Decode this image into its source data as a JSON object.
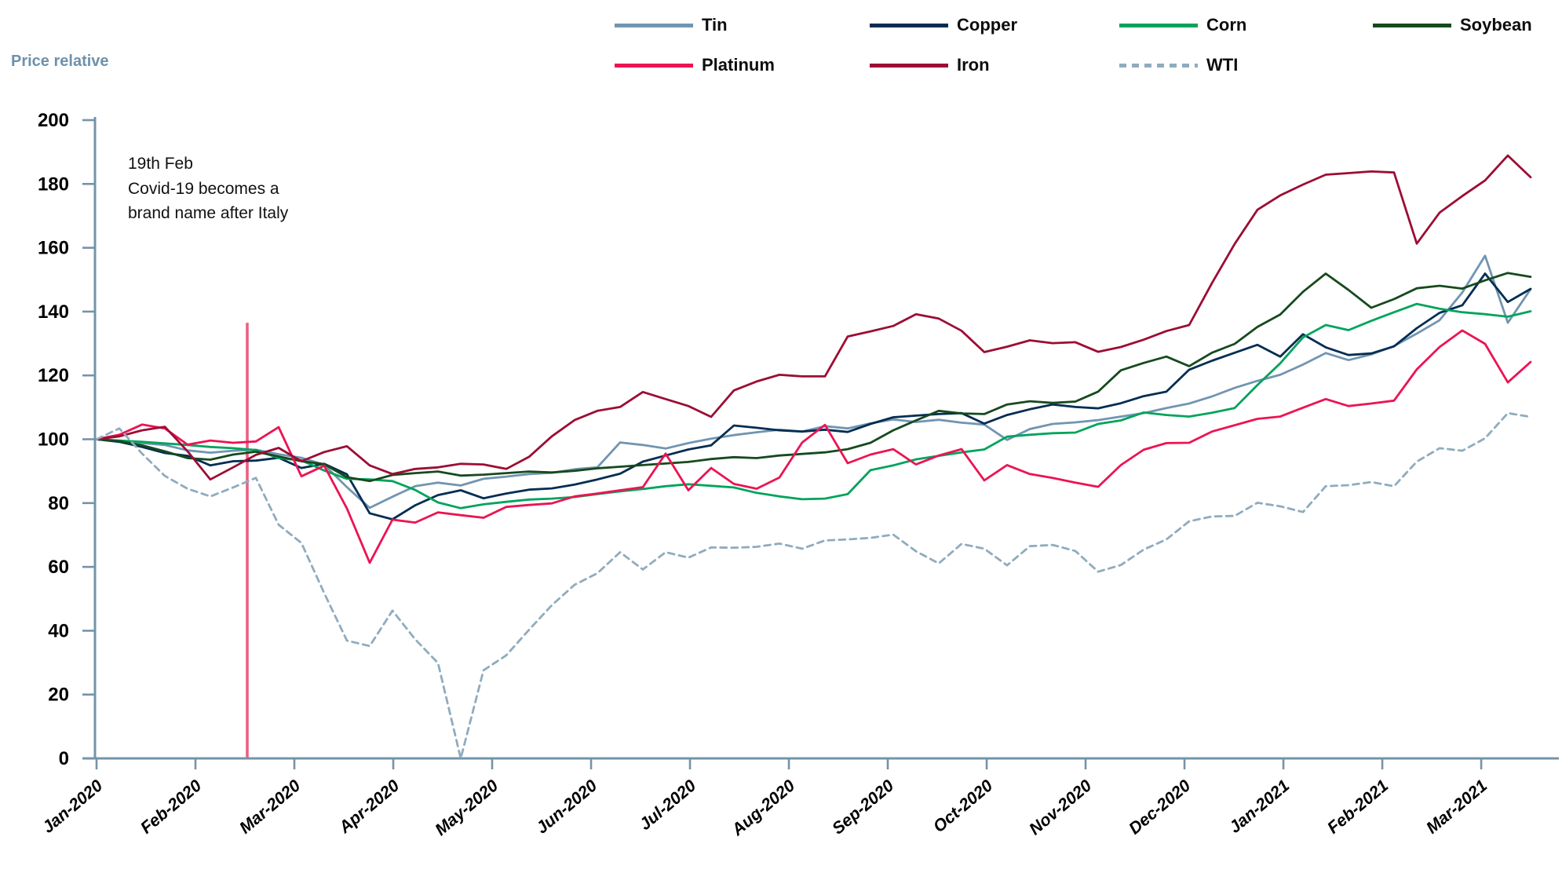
{
  "y_axis_title": "Price relative",
  "annotation": {
    "line1": "19th Feb",
    "line2": "Covid-19 becomes a",
    "line3": "brand name after Italy"
  },
  "colors": {
    "axis": "#7394A9",
    "axis_title": "#6E91AA",
    "tick_text": "#000000",
    "event_line": "#EC5F82",
    "background": "#FFFFFF"
  },
  "chart_data": {
    "type": "line",
    "title": "",
    "ylabel": "Price relative",
    "xlabel": "",
    "ylim": [
      0,
      200
    ],
    "ytick_step": 20,
    "grid": false,
    "legend_position": "top",
    "x_unit": "weeks since 2020-01-03",
    "x_tick_labels": [
      "Jan-2020",
      "Feb-2020",
      "Mar-2020",
      "Apr-2020",
      "May-2020",
      "Jun-2020",
      "Jul-2020",
      "Aug-2020",
      "Sep-2020",
      "Oct-2020",
      "Nov-2020",
      "Dec-2020",
      "Jan-2021",
      "Feb-2021",
      "Mar-2021"
    ],
    "weeks_per_month": 4.345,
    "event_line": {
      "label": "19th Feb Covid-19 becomes a brand name after Italy",
      "week": 6.62,
      "top_value": 136.5,
      "bottom_value": 0,
      "color": "#EC5F82"
    },
    "series": [
      {
        "name": "Tin",
        "color": "#7195B2",
        "dash": false,
        "values": [
          100,
          99.4,
          98.8,
          98.2,
          96.5,
          95.8,
          96.4,
          96.7,
          95.3,
          94.2,
          92.0,
          85.0,
          78.5,
          82.0,
          85.3,
          86.4,
          85.5,
          87.6,
          88.3,
          89.1,
          89.5,
          90.6,
          91.2,
          99.0,
          98.2,
          97.1,
          98.8,
          100.2,
          101.3,
          102.2,
          103.0,
          102.4,
          104.1,
          103.4,
          105.0,
          106.2,
          105.4,
          106.1,
          105.2,
          104.6,
          99.8,
          103.2,
          104.8,
          105.3,
          106.0,
          107.1,
          108.2,
          109.8,
          111.2,
          113.4,
          116.1,
          118.3,
          120.2,
          123.4,
          127.0,
          124.8,
          126.6,
          129.2,
          133.1,
          137.3,
          146.0,
          157.5,
          136.5,
          147.0
        ]
      },
      {
        "name": "Copper",
        "color": "#032D52",
        "dash": false,
        "values": [
          100,
          99.2,
          97.6,
          95.7,
          94.8,
          91.8,
          93.1,
          93.3,
          94.2,
          91.0,
          92.3,
          89.0,
          76.8,
          74.9,
          79.3,
          82.5,
          84.0,
          81.5,
          83.0,
          84.2,
          84.6,
          85.8,
          87.4,
          89.2,
          93.0,
          94.9,
          96.8,
          98.1,
          104.3,
          103.6,
          102.8,
          102.4,
          103.0,
          102.3,
          104.8,
          106.9,
          107.4,
          107.9,
          108.2,
          104.9,
          107.6,
          109.4,
          110.9,
          110.1,
          109.7,
          111.3,
          113.5,
          114.9,
          121.8,
          124.6,
          127.1,
          129.6,
          125.9,
          132.9,
          128.8,
          126.4,
          126.9,
          129.1,
          134.8,
          139.6,
          142.0,
          151.9,
          143.0,
          147.1
        ]
      },
      {
        "name": "Corn",
        "color": "#00A45C",
        "dash": false,
        "values": [
          100,
          99.6,
          99.2,
          98.7,
          98.2,
          97.6,
          97.2,
          96.6,
          94.1,
          93.4,
          90.2,
          87.6,
          87.4,
          86.9,
          84.1,
          80.2,
          78.4,
          79.6,
          80.4,
          81.1,
          81.4,
          81.9,
          82.8,
          83.7,
          84.4,
          85.3,
          85.9,
          85.4,
          84.9,
          83.2,
          82.1,
          81.2,
          81.4,
          82.8,
          90.3,
          91.8,
          93.7,
          94.8,
          95.9,
          96.8,
          100.8,
          101.4,
          101.9,
          102.1,
          104.8,
          105.9,
          108.4,
          107.6,
          107.1,
          108.3,
          109.8,
          117.0,
          123.8,
          131.9,
          135.8,
          134.2,
          137.1,
          139.8,
          142.4,
          140.9,
          139.8,
          139.2,
          138.4,
          140.1
        ]
      },
      {
        "name": "Soybean",
        "color": "#164A1E",
        "dash": false,
        "values": [
          100,
          99.4,
          98.1,
          96.2,
          94.1,
          93.6,
          95.2,
          96.1,
          94.6,
          93.1,
          92.2,
          88.1,
          86.9,
          88.8,
          89.4,
          89.9,
          88.6,
          88.9,
          89.4,
          89.9,
          89.6,
          90.1,
          90.9,
          91.4,
          91.9,
          92.4,
          92.9,
          93.8,
          94.4,
          94.1,
          94.9,
          95.4,
          95.9,
          96.9,
          98.9,
          102.8,
          105.9,
          108.9,
          108.1,
          107.9,
          110.9,
          111.9,
          111.4,
          111.8,
          114.9,
          121.6,
          123.9,
          125.9,
          122.9,
          127.1,
          129.9,
          135.2,
          139.1,
          146.2,
          151.9,
          146.8,
          141.2,
          143.9,
          147.3,
          148.1,
          147.2,
          149.8,
          152.1,
          150.9
        ]
      },
      {
        "name": "Platinum",
        "color": "#EB1453",
        "dash": false,
        "values": [
          100,
          101.4,
          104.6,
          103.4,
          98.3,
          99.6,
          98.9,
          99.3,
          103.8,
          88.4,
          91.7,
          78.3,
          61.3,
          74.8,
          73.9,
          77.1,
          76.2,
          75.4,
          78.8,
          79.4,
          79.9,
          82.1,
          83.0,
          84.0,
          85.0,
          95.5,
          84.0,
          91.0,
          86.0,
          84.5,
          88.0,
          99.0,
          104.5,
          92.5,
          95.2,
          96.9,
          92.1,
          94.9,
          96.9,
          87.1,
          91.9,
          89.1,
          87.9,
          86.4,
          85.1,
          91.9,
          96.7,
          98.8,
          98.9,
          102.4,
          104.4,
          106.4,
          107.1,
          109.9,
          112.6,
          110.4,
          111.2,
          112.1,
          121.9,
          128.9,
          134.1,
          129.9,
          117.8,
          124.2
        ]
      },
      {
        "name": "Iron",
        "color": "#9C0D34",
        "dash": false,
        "values": [
          100,
          100.9,
          102.8,
          103.9,
          96.2,
          87.4,
          91.2,
          95.1,
          97.3,
          93.1,
          96.0,
          97.8,
          91.8,
          89.1,
          90.7,
          91.2,
          92.3,
          92.1,
          90.7,
          94.5,
          100.9,
          106.0,
          108.9,
          110.1,
          114.8,
          112.6,
          110.4,
          107.0,
          115.3,
          118.1,
          120.2,
          119.7,
          119.7,
          132.2,
          133.8,
          135.5,
          139.2,
          137.8,
          134.0,
          127.3,
          129.0,
          131.0,
          130.1,
          130.4,
          127.4,
          128.9,
          131.2,
          133.9,
          135.8,
          148.9,
          161.2,
          171.9,
          176.4,
          179.8,
          182.9,
          183.4,
          183.9,
          183.6,
          161.3,
          171.0,
          176.2,
          181.1,
          188.9,
          182.1
        ]
      },
      {
        "name": "WTI",
        "color": "#8FACBE",
        "dash": true,
        "values": [
          100,
          103.4,
          95.5,
          88.5,
          84.5,
          82.1,
          84.9,
          87.9,
          73.2,
          67.5,
          51.8,
          36.9,
          35.2,
          46.3,
          37.3,
          29.9,
          0,
          27.6,
          32.3,
          40.3,
          48.0,
          54.4,
          58.0,
          64.6,
          59.2,
          64.6,
          62.9,
          66.1,
          66.0,
          66.3,
          67.3,
          65.7,
          68.3,
          68.6,
          69.1,
          70.1,
          64.9,
          61.1,
          67.2,
          65.7,
          60.5,
          66.5,
          66.9,
          65.0,
          58.5,
          60.6,
          65.4,
          68.6,
          74.3,
          75.8,
          76.0,
          80.1,
          79.0,
          77.2,
          85.3,
          85.6,
          86.6,
          85.3,
          93.0,
          97.2,
          96.4,
          100.3,
          108.2,
          107.0
        ]
      }
    ]
  }
}
